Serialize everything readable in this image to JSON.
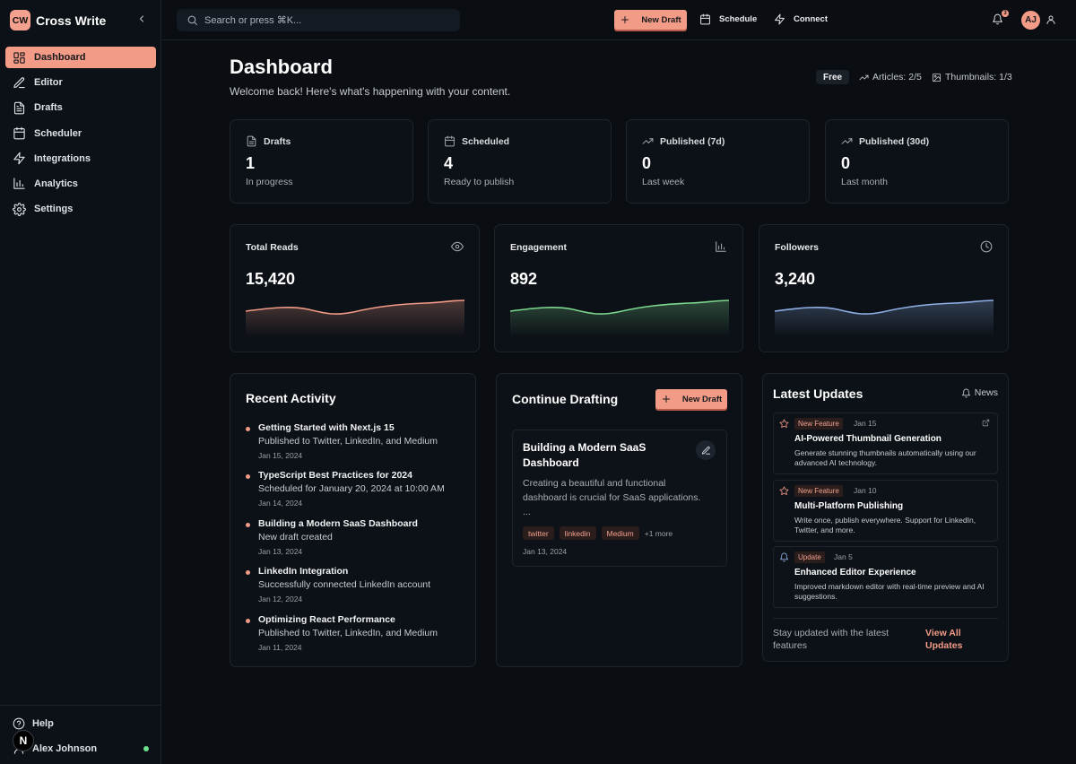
{
  "app": {
    "logo_text": "CW",
    "name": "Cross Write"
  },
  "sidebar": {
    "items": [
      {
        "label": "Dashboard",
        "icon": "dashboard-icon"
      },
      {
        "label": "Editor",
        "icon": "pen-icon"
      },
      {
        "label": "Drafts",
        "icon": "file-icon"
      },
      {
        "label": "Scheduler",
        "icon": "calendar-icon"
      },
      {
        "label": "Integrations",
        "icon": "zap-icon"
      },
      {
        "label": "Analytics",
        "icon": "bar-chart-icon"
      },
      {
        "label": "Settings",
        "icon": "gear-icon"
      }
    ],
    "active": "Dashboard",
    "help_label": "Help",
    "user_name": "Alex Johnson",
    "corner_badge": "N"
  },
  "topbar": {
    "search_placeholder": "Search or press ⌘K...",
    "new_draft_label": "New Draft",
    "schedule_label": "Schedule",
    "connect_label": "Connect",
    "notification_count": "3",
    "avatar_initials": "AJ"
  },
  "header": {
    "title": "Dashboard",
    "subtitle": "Welcome back! Here's what's happening with your content.",
    "plan": "Free",
    "articles_quota": "Articles: 2/5",
    "thumbnails_quota": "Thumbnails: 1/3"
  },
  "stats": [
    {
      "label": "Drafts",
      "value": "1",
      "note": "In progress",
      "icon": "file-icon"
    },
    {
      "label": "Scheduled",
      "value": "4",
      "note": "Ready to publish",
      "icon": "calendar-icon"
    },
    {
      "label": "Published (7d)",
      "value": "0",
      "note": "Last week",
      "icon": "trending-up-icon"
    },
    {
      "label": "Published (30d)",
      "value": "0",
      "note": "Last month",
      "icon": "trending-up-icon"
    }
  ],
  "metrics": [
    {
      "label": "Total Reads",
      "value": "15,420",
      "icon": "eye-icon",
      "color": "#f29b87"
    },
    {
      "label": "Engagement",
      "value": "892",
      "icon": "bar-chart-icon",
      "color": "#7dd88e"
    },
    {
      "label": "Followers",
      "value": "3,240",
      "icon": "clock-icon",
      "color": "#8fb0e6"
    }
  ],
  "recent_activity": {
    "title": "Recent Activity",
    "items": [
      {
        "title": "Getting Started with Next.js 15",
        "desc": "Published to Twitter, LinkedIn, and Medium",
        "date": "Jan 15, 2024"
      },
      {
        "title": "TypeScript Best Practices for 2024",
        "desc": "Scheduled for January 20, 2024 at 10:00 AM",
        "date": "Jan 14, 2024"
      },
      {
        "title": "Building a Modern SaaS Dashboard",
        "desc": "New draft created",
        "date": "Jan 13, 2024"
      },
      {
        "title": "LinkedIn Integration",
        "desc": "Successfully connected LinkedIn account",
        "date": "Jan 12, 2024"
      },
      {
        "title": "Optimizing React Performance",
        "desc": "Published to Twitter, LinkedIn, and Medium",
        "date": "Jan 11, 2024"
      }
    ]
  },
  "continue_drafting": {
    "title": "Continue Drafting",
    "new_draft_label": "New Draft",
    "draft": {
      "title": "Building a Modern SaaS Dashboard",
      "excerpt": "Creating a beautiful and functional dashboard is crucial for SaaS applications. ...",
      "tags": [
        "twitter",
        "linkedin",
        "Medium"
      ],
      "more": "+1 more",
      "date": "Jan 13, 2024"
    }
  },
  "latest_updates": {
    "title": "Latest Updates",
    "news_label": "News",
    "items": [
      {
        "badge": "New Feature",
        "date": "Jan 15",
        "title": "AI-Powered Thumbnail Generation",
        "desc": "Generate stunning thumbnails automatically using our advanced AI technology.",
        "icon": "star-icon"
      },
      {
        "badge": "New Feature",
        "date": "Jan 10",
        "title": "Multi-Platform Publishing",
        "desc": "Write once, publish everywhere. Support for LinkedIn, Twitter, and more.",
        "icon": "star-icon"
      },
      {
        "badge": "Update",
        "date": "Jan 5",
        "title": "Enhanced Editor Experience",
        "desc": "Improved markdown editor with real-time preview and AI suggestions.",
        "icon": "bell-icon"
      }
    ],
    "footer_text": "Stay updated with the latest features",
    "view_all_label": "View All Updates"
  }
}
